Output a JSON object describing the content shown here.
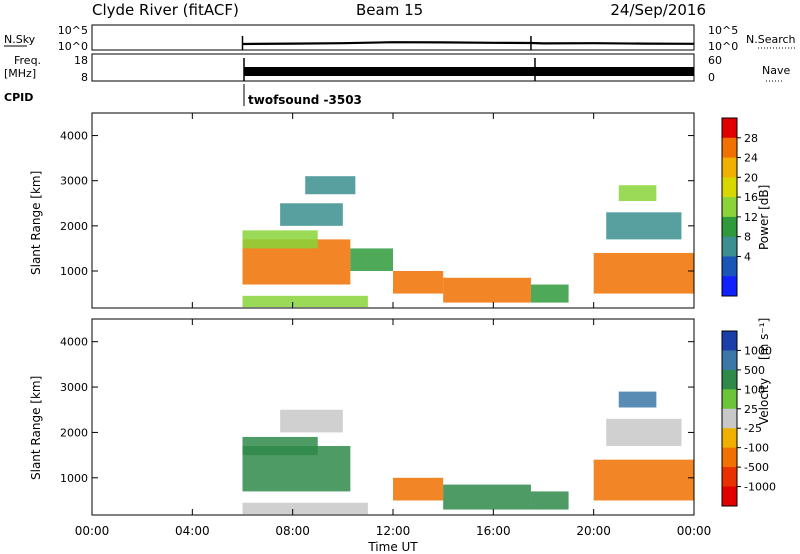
{
  "header": {
    "station": "Clyde River (fitACF)",
    "beam": "Beam 15",
    "date": "24/Sep/2016"
  },
  "noise_panel": {
    "left_label": "N.Sky",
    "right_label": "N.Search",
    "left_ticks": [
      "10^5",
      "10^0"
    ],
    "right_ticks": [
      "10^5",
      "10^0"
    ]
  },
  "freq_panel": {
    "left_label_1": "Freq.",
    "left_label_2": "[MHz]",
    "right_label": "Nave",
    "left_ticks": [
      "18",
      "8"
    ],
    "right_ticks": [
      "60",
      "0"
    ]
  },
  "cpid": {
    "label": "CPID",
    "value": "twofsound -3503"
  },
  "axes": {
    "ylabel": "Slant Range [km]",
    "xlabel": "Time UT",
    "yticks": [
      "4000",
      "3000",
      "2000",
      "1000"
    ],
    "xticks": [
      "00:00",
      "04:00",
      "08:00",
      "12:00",
      "16:00",
      "20:00",
      "00:00"
    ]
  },
  "power_scale": {
    "label": "Power [dB]",
    "ticks": [
      "28",
      "24",
      "20",
      "16",
      "12",
      "8",
      "4"
    ],
    "colors": [
      "#e00000",
      "#f07000",
      "#f0b000",
      "#d8d800",
      "#8ad43a",
      "#2f9a3c",
      "#3b8f8f",
      "#1a55b8",
      "#1020ff"
    ]
  },
  "velocity_scale": {
    "label": "Velocity",
    "unit": "[m s⁻¹]",
    "ticks": [
      "1000",
      "500",
      "100",
      "25",
      "-25",
      "-100",
      "-500",
      "-1000"
    ],
    "colors": [
      "#1a3fa8",
      "#3b78a8",
      "#2f8a4a",
      "#6cc43a",
      "#c8c8c8",
      "#f0b000",
      "#f07000",
      "#e83000",
      "#e00000"
    ]
  },
  "chart_data": [
    {
      "type": "line",
      "title": "N.Sky / N.Search",
      "x_unit": "hours UT",
      "x": [
        6.0,
        8.0,
        10.0,
        12.0,
        14.0,
        16.0,
        17.5,
        18.0,
        20.0,
        22.0,
        24.0
      ],
      "series": [
        {
          "name": "N.Sky",
          "values": [
            0.5,
            0.6,
            0.7,
            0.95,
            0.9,
            0.8,
            0.75,
            0.65,
            0.7,
            0.6,
            0.55
          ]
        }
      ],
      "ylim": [
        0,
        5
      ],
      "xlim": [
        0,
        24
      ]
    },
    {
      "type": "line",
      "title": "Freq. / Nave",
      "x_unit": "hours UT",
      "x": [
        6.0,
        10.0,
        14.0,
        17.5,
        20.0,
        24.0
      ],
      "series": [
        {
          "name": "Freq.",
          "values": [
            11.5,
            11.5,
            11.5,
            11.5,
            11.5,
            11.5
          ]
        }
      ],
      "ylim": [
        8,
        18
      ],
      "xlim": [
        0,
        24
      ]
    },
    {
      "type": "heatmap",
      "title": "Power [dB]",
      "xlim": [
        0,
        24
      ],
      "ylim": [
        180,
        4500
      ],
      "regions": [
        {
          "t0": 6.0,
          "t1": 10.3,
          "r0": 700,
          "r1": 1700,
          "value": 24
        },
        {
          "t0": 6.0,
          "t1": 9.0,
          "r0": 1500,
          "r1": 1900,
          "value": 14
        },
        {
          "t0": 10.3,
          "t1": 12.0,
          "r0": 1000,
          "r1": 1500,
          "value": 10
        },
        {
          "t0": 12.0,
          "t1": 14.0,
          "r0": 500,
          "r1": 1000,
          "value": 22
        },
        {
          "t0": 14.0,
          "t1": 17.5,
          "r0": 300,
          "r1": 850,
          "value": 24
        },
        {
          "t0": 17.5,
          "t1": 19.0,
          "r0": 300,
          "r1": 700,
          "value": 12
        },
        {
          "t0": 20.0,
          "t1": 24.0,
          "r0": 500,
          "r1": 1400,
          "value": 22
        },
        {
          "t0": 6.0,
          "t1": 11.0,
          "r0": 200,
          "r1": 450,
          "value": 14
        },
        {
          "t0": 7.5,
          "t1": 10.0,
          "r0": 2000,
          "r1": 2500,
          "value": 8
        },
        {
          "t0": 20.5,
          "t1": 23.5,
          "r0": 1700,
          "r1": 2300,
          "value": 8
        },
        {
          "t0": 21.0,
          "t1": 22.5,
          "r0": 2550,
          "r1": 2900,
          "value": 14
        },
        {
          "t0": 8.5,
          "t1": 10.5,
          "r0": 2700,
          "r1": 3100,
          "value": 8
        }
      ]
    },
    {
      "type": "heatmap",
      "title": "Velocity [m s⁻¹]",
      "xlim": [
        0,
        24
      ],
      "ylim": [
        180,
        4500
      ],
      "regions": [
        {
          "t0": 6.0,
          "t1": 10.3,
          "r0": 700,
          "r1": 1700,
          "value": 100
        },
        {
          "t0": 6.0,
          "t1": 9.0,
          "r0": 1500,
          "r1": 1900,
          "value": 150
        },
        {
          "t0": 12.0,
          "t1": 14.0,
          "r0": 500,
          "r1": 1000,
          "value": -150
        },
        {
          "t0": 14.0,
          "t1": 17.5,
          "r0": 300,
          "r1": 850,
          "value": 80
        },
        {
          "t0": 17.5,
          "t1": 19.0,
          "r0": 300,
          "r1": 700,
          "value": 60
        },
        {
          "t0": 20.0,
          "t1": 24.0,
          "r0": 500,
          "r1": 1400,
          "value": -200
        },
        {
          "t0": 6.0,
          "t1": 11.0,
          "r0": 200,
          "r1": 450,
          "value": 0
        },
        {
          "t0": 7.5,
          "t1": 10.0,
          "r0": 2000,
          "r1": 2500,
          "value": 0
        },
        {
          "t0": 20.5,
          "t1": 23.5,
          "r0": 1700,
          "r1": 2300,
          "value": 0
        },
        {
          "t0": 21.0,
          "t1": 22.5,
          "r0": 2550,
          "r1": 2900,
          "value": 700
        }
      ]
    }
  ]
}
